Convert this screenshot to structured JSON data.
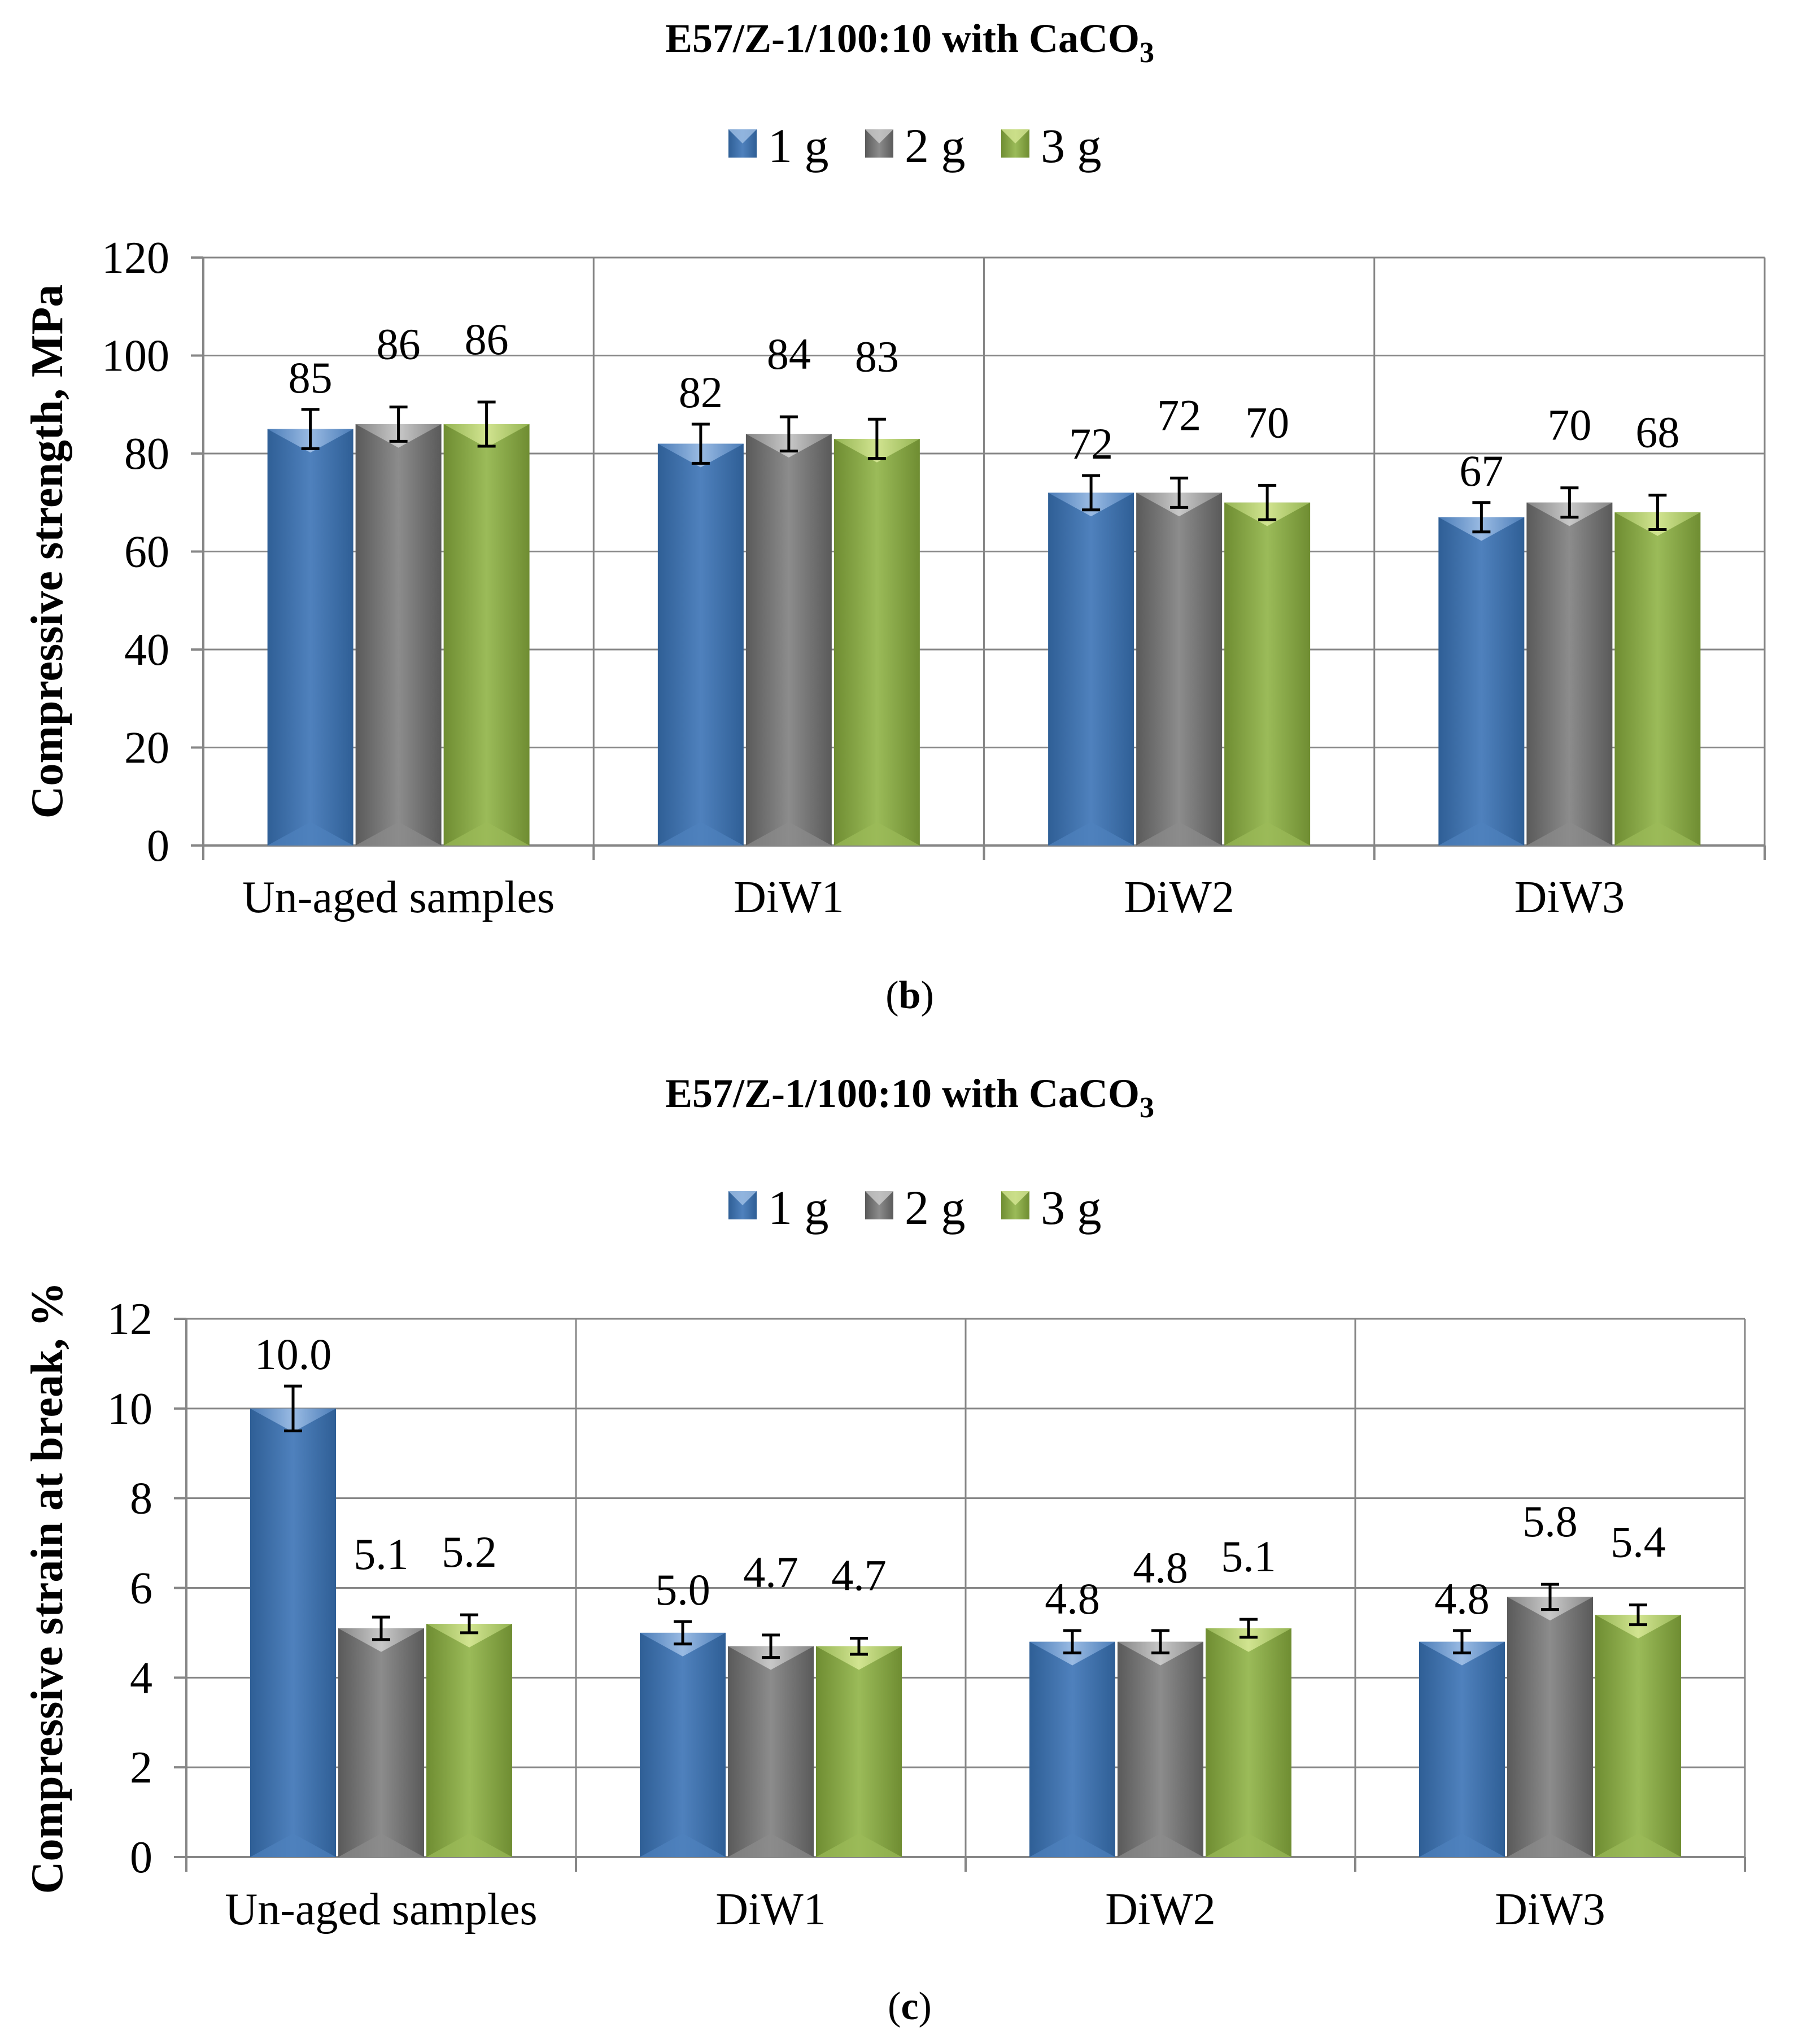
{
  "chart_data": [
    {
      "type": "bar",
      "title": "E57/Z-1/100:10 with CaCO",
      "title_subscript": "3",
      "caption_open": "(",
      "caption_letter": "b",
      "caption_close": ")",
      "ylabel": "Compressive strength, MPa",
      "xlabel": "",
      "ylim": [
        0,
        120
      ],
      "yticks": [
        "0",
        "20",
        "40",
        "60",
        "80",
        "100",
        "120"
      ],
      "grid": true,
      "legend_position": "top-center",
      "categories": [
        "Un-aged samples",
        "DiW1",
        "DiW2",
        "DiW3"
      ],
      "series": [
        {
          "name": "1 g",
          "values": [
            85,
            82,
            72,
            67
          ],
          "errors": [
            4,
            4,
            3.5,
            3
          ],
          "labels": [
            "85",
            "82",
            "72",
            "67"
          ]
        },
        {
          "name": "2 g",
          "values": [
            86,
            84,
            72,
            70
          ],
          "errors": [
            3.5,
            3.5,
            3,
            3
          ],
          "labels": [
            "86",
            "84",
            "72",
            "70"
          ]
        },
        {
          "name": "3 g",
          "values": [
            86,
            83,
            70,
            68
          ],
          "errors": [
            4.5,
            4,
            3.5,
            3.5
          ],
          "labels": [
            "86",
            "83",
            "70",
            "68"
          ]
        }
      ]
    },
    {
      "type": "bar",
      "title": "E57/Z-1/100:10 with CaCO",
      "title_subscript": "3",
      "caption_open": "(",
      "caption_letter": "c",
      "caption_close": ")",
      "ylabel": "Compressive strain at break, %",
      "xlabel": "",
      "ylim": [
        0,
        12
      ],
      "yticks": [
        "0",
        "2",
        "4",
        "6",
        "8",
        "10",
        "12"
      ],
      "grid": true,
      "legend_position": "top-center",
      "categories": [
        "Un-aged samples",
        "DiW1",
        "DiW2",
        "DiW3"
      ],
      "series": [
        {
          "name": "1 g",
          "values": [
            10.0,
            5.0,
            4.8,
            4.8
          ],
          "errors": [
            0.5,
            0.25,
            0.25,
            0.25
          ],
          "labels": [
            "10.0",
            "5.0",
            "4.8",
            "4.8"
          ]
        },
        {
          "name": "2 g",
          "values": [
            5.1,
            4.7,
            4.8,
            5.8
          ],
          "errors": [
            0.25,
            0.25,
            0.25,
            0.28
          ],
          "labels": [
            "5.1",
            "4.7",
            "4.8",
            "5.8"
          ]
        },
        {
          "name": "3 g",
          "values": [
            5.2,
            4.7,
            5.1,
            5.4
          ],
          "errors": [
            0.2,
            0.18,
            0.2,
            0.22
          ],
          "labels": [
            "5.2",
            "4.7",
            "5.1",
            "5.4"
          ]
        }
      ]
    }
  ],
  "colors": {
    "series": [
      "#4f81bd",
      "#8c8c8c",
      "#9bbb59"
    ],
    "series_light": [
      "#a7c5ea",
      "#d2d2d2",
      "#dbeb9a"
    ],
    "series_dark": [
      "#2f5f96",
      "#5a5a5a",
      "#6f8d32"
    ],
    "grid": "#868686",
    "axis": "#868686"
  }
}
